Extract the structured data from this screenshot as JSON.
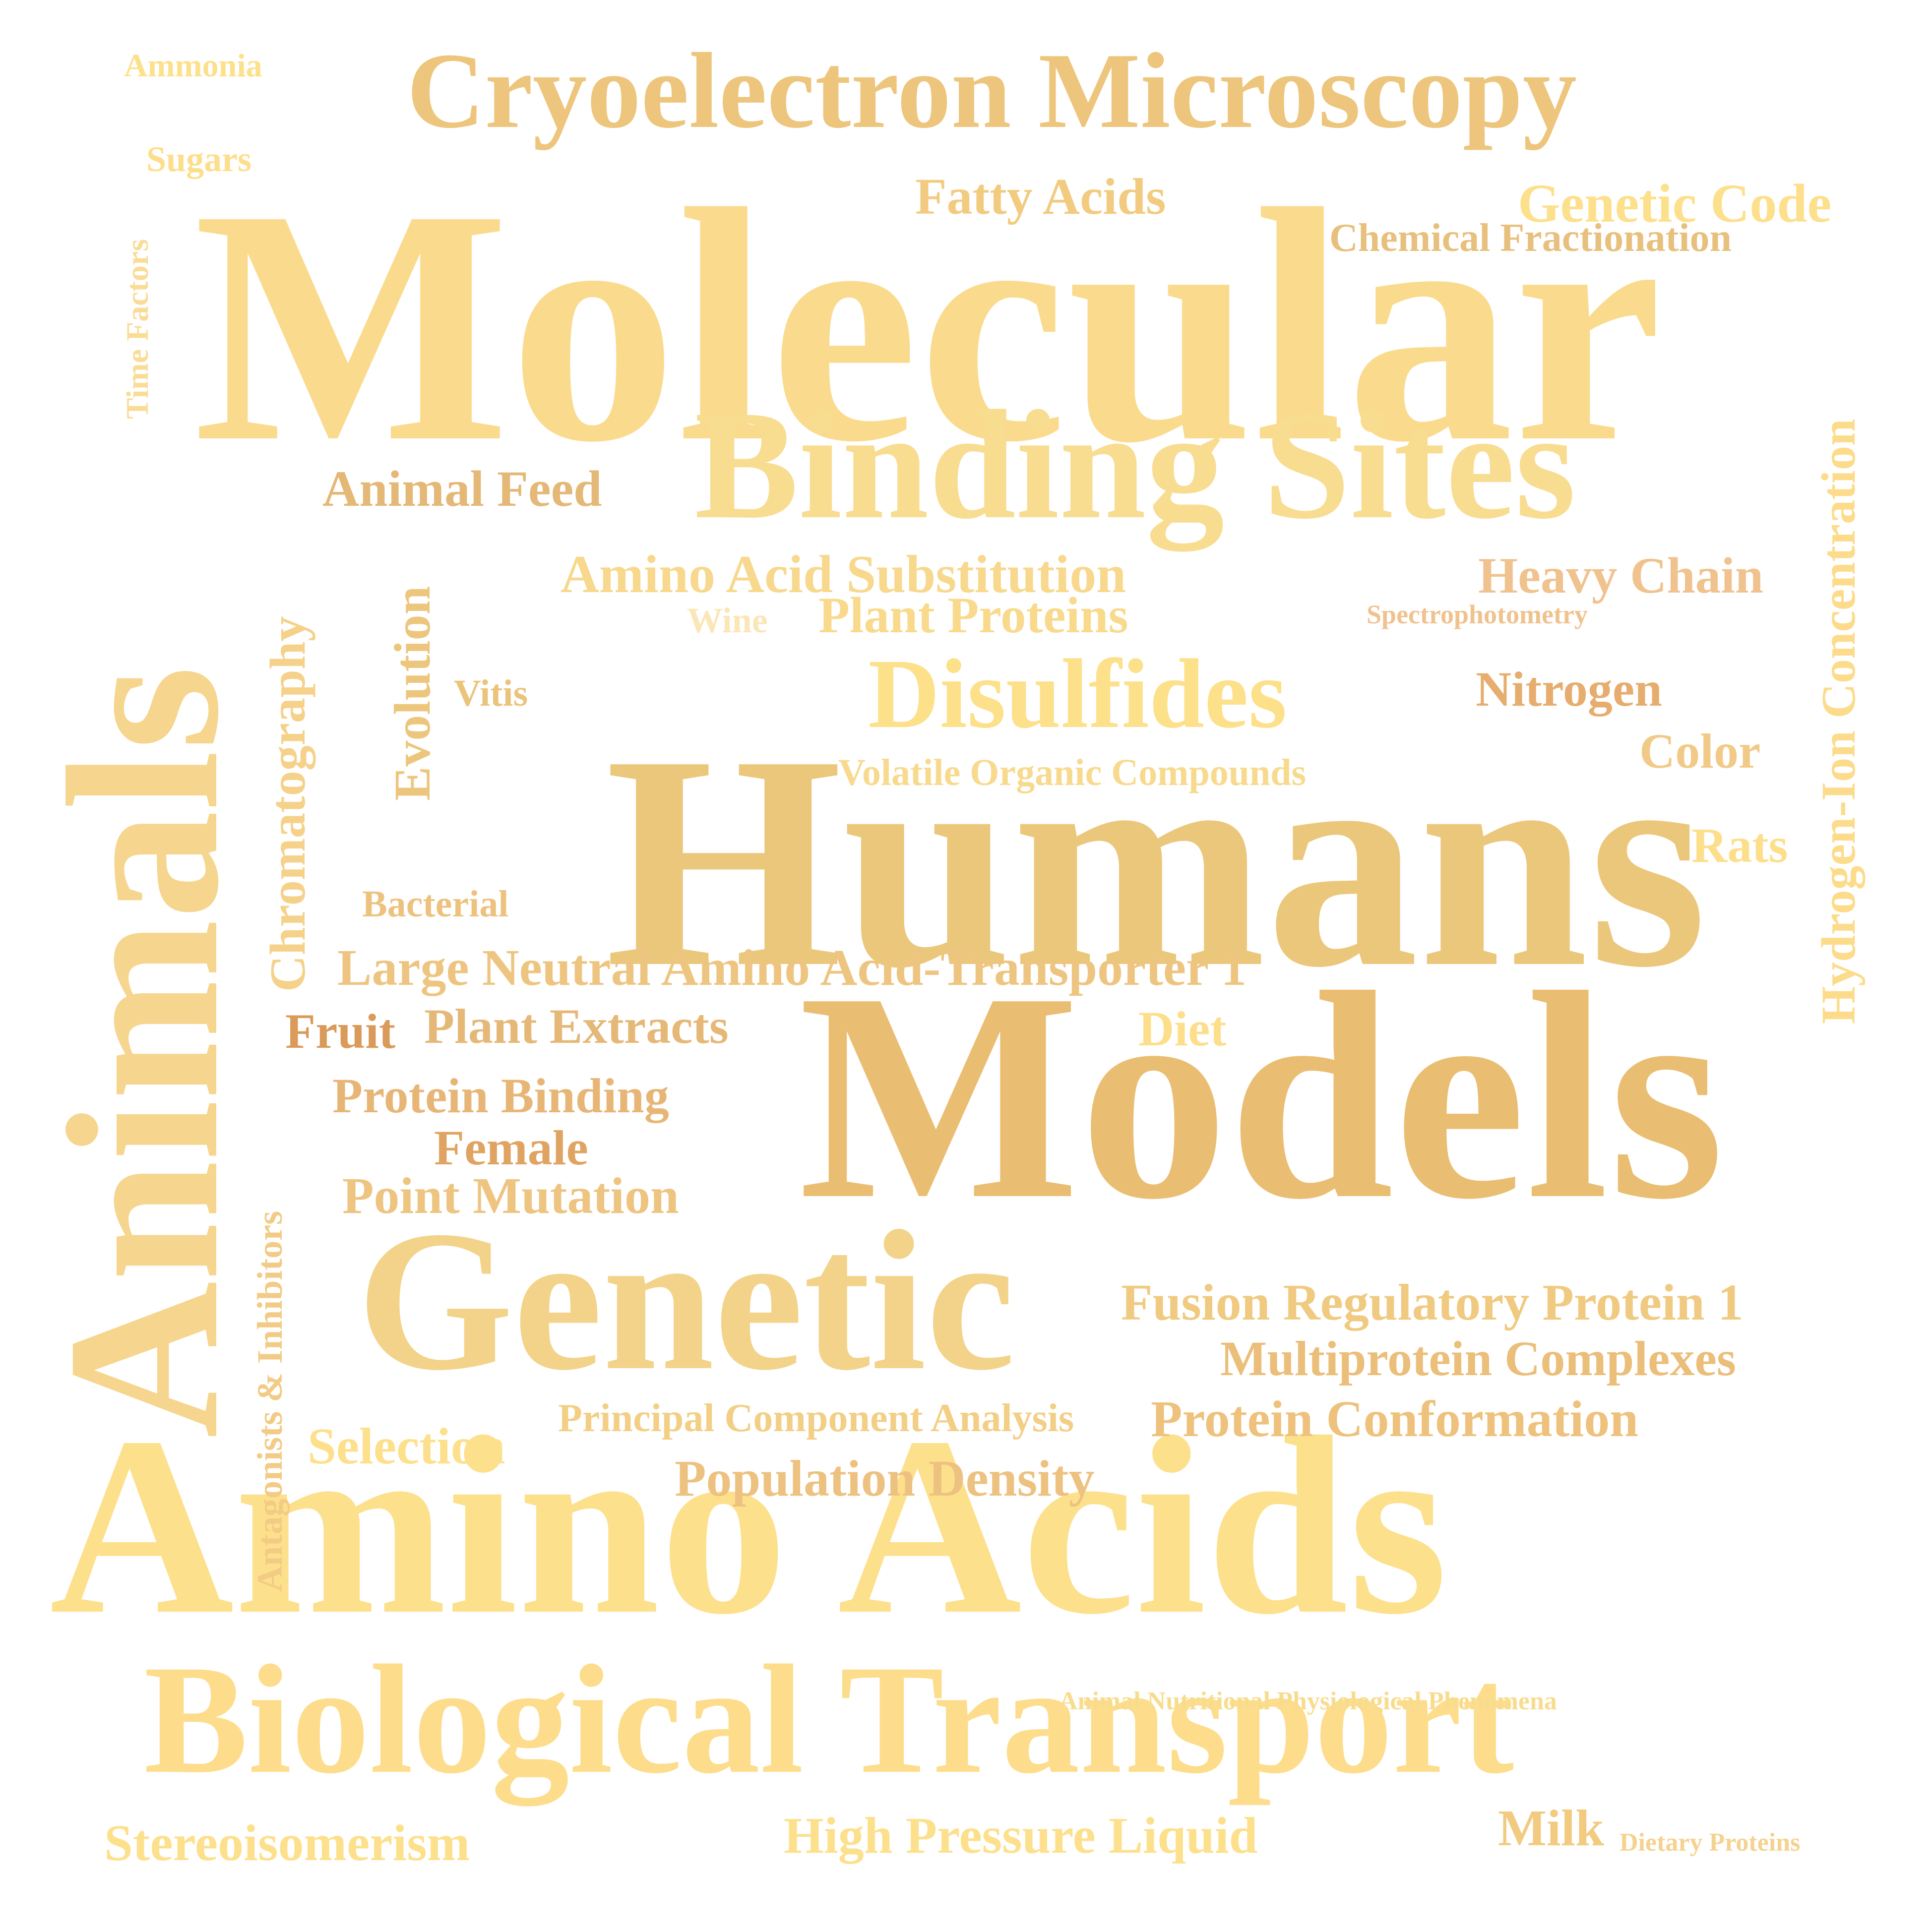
{
  "palette": {
    "pale_yellow": "#FDE08C",
    "light_gold": "#F8D98A",
    "gold": "#ECC57A",
    "tan": "#E8BE7E",
    "orange_tan": "#E0A462",
    "dark_orange": "#D99A5A",
    "peach": "#F0C28E",
    "pale_cream": "#FBE6B8"
  },
  "words": [
    {
      "id": "molecular",
      "text": "Molecular",
      "color": "#FADB8E"
    },
    {
      "id": "humans",
      "text": "Humans",
      "color": "#EBC77B"
    },
    {
      "id": "models",
      "text": "Models",
      "color": "#EABE72"
    },
    {
      "id": "amino-acids",
      "text": "Amino Acids",
      "color": "#FDE08C"
    },
    {
      "id": "animals",
      "text": "Animals",
      "color": "#F6D58E"
    },
    {
      "id": "genetic",
      "text": "Genetic",
      "color": "#F3D38A"
    },
    {
      "id": "binding-sites",
      "text": "Binding Sites",
      "color": "#F8DC90"
    },
    {
      "id": "biological-transport",
      "text": "Biological Transport",
      "color": "#FDDD8C"
    },
    {
      "id": "cryoelectron-microscopy",
      "text": "Cryoelectron Microscopy",
      "color": "#EDC57C"
    },
    {
      "id": "disulfides",
      "text": "Disulfides",
      "color": "#FDE08A"
    },
    {
      "id": "fatty-acids",
      "text": "Fatty Acids",
      "color": "#F2CB80"
    },
    {
      "id": "genetic-code",
      "text": "Genetic Code",
      "color": "#FDE08C"
    },
    {
      "id": "chemical-fractionation",
      "text": "Chemical Fractionation",
      "color": "#E8C07E"
    },
    {
      "id": "hydrogen-ion-concentration",
      "text": "Hydrogen-Ion Concentration",
      "color": "#FCDC8A"
    },
    {
      "id": "animal-feed",
      "text": "Animal Feed",
      "color": "#E4B876"
    },
    {
      "id": "amino-acid-substitution",
      "text": "Amino Acid Substitution",
      "color": "#F7D88C"
    },
    {
      "id": "heavy-chain",
      "text": "Heavy Chain",
      "color": "#F0C28E"
    },
    {
      "id": "plant-proteins",
      "text": "Plant Proteins",
      "color": "#F9DA8C"
    },
    {
      "id": "wine",
      "text": "Wine",
      "color": "#FBE6B8"
    },
    {
      "id": "spectrophotometry",
      "text": "Spectrophotometry",
      "color": "#F0C28E"
    },
    {
      "id": "nitrogen",
      "text": "Nitrogen",
      "color": "#E7AD6E"
    },
    {
      "id": "color",
      "text": "Color",
      "color": "#F2CA88"
    },
    {
      "id": "rats",
      "text": "Rats",
      "color": "#FDDE8A"
    },
    {
      "id": "volatile-organic-compounds",
      "text": "Volatile Organic Compounds",
      "color": "#F8DA8E"
    },
    {
      "id": "evolution",
      "text": "Evolution",
      "color": "#EDC67E"
    },
    {
      "id": "chromatography",
      "text": "Chromatography",
      "color": "#F5D18A"
    },
    {
      "id": "vitis",
      "text": "Vitis",
      "color": "#EBC47C"
    },
    {
      "id": "bacterial",
      "text": "Bacterial",
      "color": "#EDC27E"
    },
    {
      "id": "large-neutral",
      "text": "Large Neutral Amino Acid-Transporter 1",
      "color": "#EEC580"
    },
    {
      "id": "fruit",
      "text": "Fruit",
      "color": "#D99A5A"
    },
    {
      "id": "plant-extracts",
      "text": "Plant Extracts",
      "color": "#E6B878"
    },
    {
      "id": "diet",
      "text": "Diet",
      "color": "#FDDE8A"
    },
    {
      "id": "protein-binding",
      "text": "Protein Binding",
      "color": "#E7B676"
    },
    {
      "id": "female",
      "text": "Female",
      "color": "#E0A462"
    },
    {
      "id": "point-mutation",
      "text": "Point Mutation",
      "color": "#EDC480"
    },
    {
      "id": "antagonists-inhibitors",
      "text": "Antagonists & Inhibitors",
      "color": "#F2CB86"
    },
    {
      "id": "fusion-regulatory",
      "text": "Fusion Regulatory Protein 1",
      "color": "#F0CA80"
    },
    {
      "id": "multiprotein-complexes",
      "text": "Multiprotein Complexes",
      "color": "#EBBE7A"
    },
    {
      "id": "principal-component",
      "text": "Principal Component Analysis",
      "color": "#F3CF86"
    },
    {
      "id": "protein-conformation",
      "text": "Protein Conformation",
      "color": "#EEC27C"
    },
    {
      "id": "selection",
      "text": "Selection",
      "color": "#FDE08C"
    },
    {
      "id": "population-density",
      "text": "Population Density",
      "color": "#EDC280"
    },
    {
      "id": "animal-nutritional",
      "text": "Animal Nutritional Physiological Phenomena",
      "color": "#F8DC8E"
    },
    {
      "id": "stereoisomerism",
      "text": "Stereoisomerism",
      "color": "#FDE08C"
    },
    {
      "id": "high-pressure-liquid",
      "text": "High Pressure Liquid",
      "color": "#FDE08C"
    },
    {
      "id": "milk",
      "text": "Milk",
      "color": "#F2CB80"
    },
    {
      "id": "dietary-proteins",
      "text": "Dietary Proteins",
      "color": "#F5D290"
    },
    {
      "id": "ammonia",
      "text": "Ammonia",
      "color": "#FDE08A"
    },
    {
      "id": "sugars",
      "text": "Sugars",
      "color": "#FDDE8A"
    },
    {
      "id": "time-factors",
      "text": "Time Factors",
      "color": "#F9DC96"
    }
  ]
}
